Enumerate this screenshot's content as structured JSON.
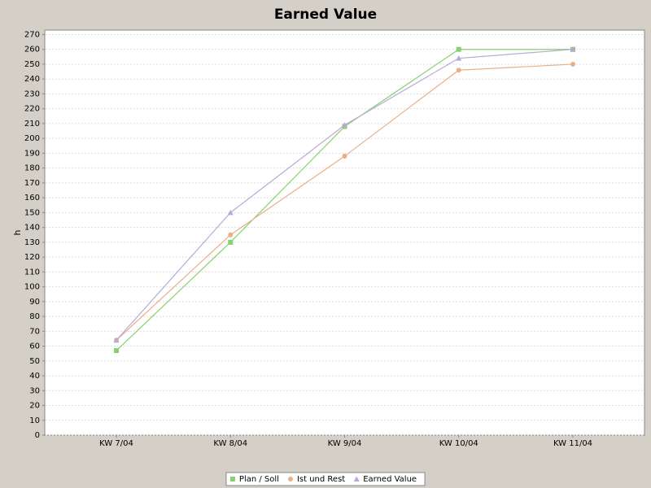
{
  "chart_data": {
    "type": "line",
    "title": "Earned Value",
    "y_label": "h",
    "categories": [
      "KW 7/04",
      "KW 8/04",
      "KW 9/04",
      "KW 10/04",
      "KW 11/04"
    ],
    "series": [
      {
        "name": "Plan / Soll",
        "color": "#88d070",
        "marker": "square",
        "values": [
          57,
          130,
          208,
          260,
          260
        ]
      },
      {
        "name": "Ist und Rest",
        "color": "#e8b088",
        "marker": "circle",
        "values": [
          64,
          135,
          188,
          246,
          250
        ]
      },
      {
        "name": "Earned Value",
        "color": "#b8a8d8",
        "marker": "triangle",
        "values": [
          64,
          150,
          209,
          254,
          260
        ]
      }
    ],
    "ylim": [
      0,
      273
    ],
    "yticks": [
      0,
      10,
      20,
      30,
      40,
      50,
      60,
      70,
      80,
      90,
      100,
      110,
      120,
      130,
      140,
      150,
      160,
      170,
      180,
      190,
      200,
      210,
      220,
      230,
      240,
      250,
      260,
      270
    ],
    "grid": true,
    "legend": "bottom"
  }
}
